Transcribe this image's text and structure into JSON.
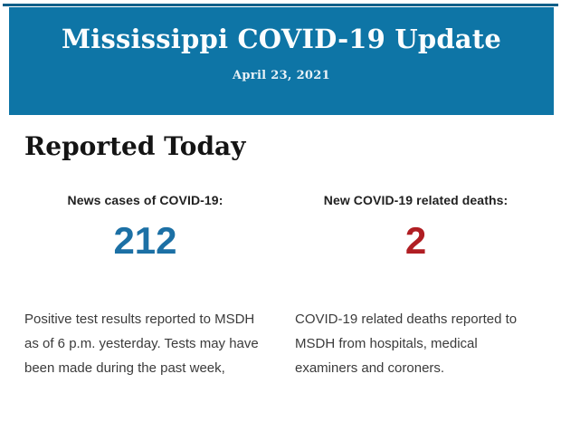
{
  "page": {
    "background_color": "#ffffff"
  },
  "header": {
    "top_rule_color": "#0a5f88",
    "background_color": "#0e75a6",
    "title": "Mississippi COVID-19 Update",
    "date": "April 23, 2021"
  },
  "main": {
    "heading": "Reported Today",
    "stats": [
      {
        "label": "News cases of COVID-19:",
        "value": "212",
        "value_color": "#1c70a5",
        "description": "Positive test results reported to MSDH as of 6 p.m. yesterday. Tests may have been made during the past week,"
      },
      {
        "label": "New COVID-19 related deaths:",
        "value": "2",
        "value_color": "#b01e23",
        "description": "COVID-19 related deaths reported to MSDH from hospitals, medical examiners and coroners."
      }
    ]
  }
}
